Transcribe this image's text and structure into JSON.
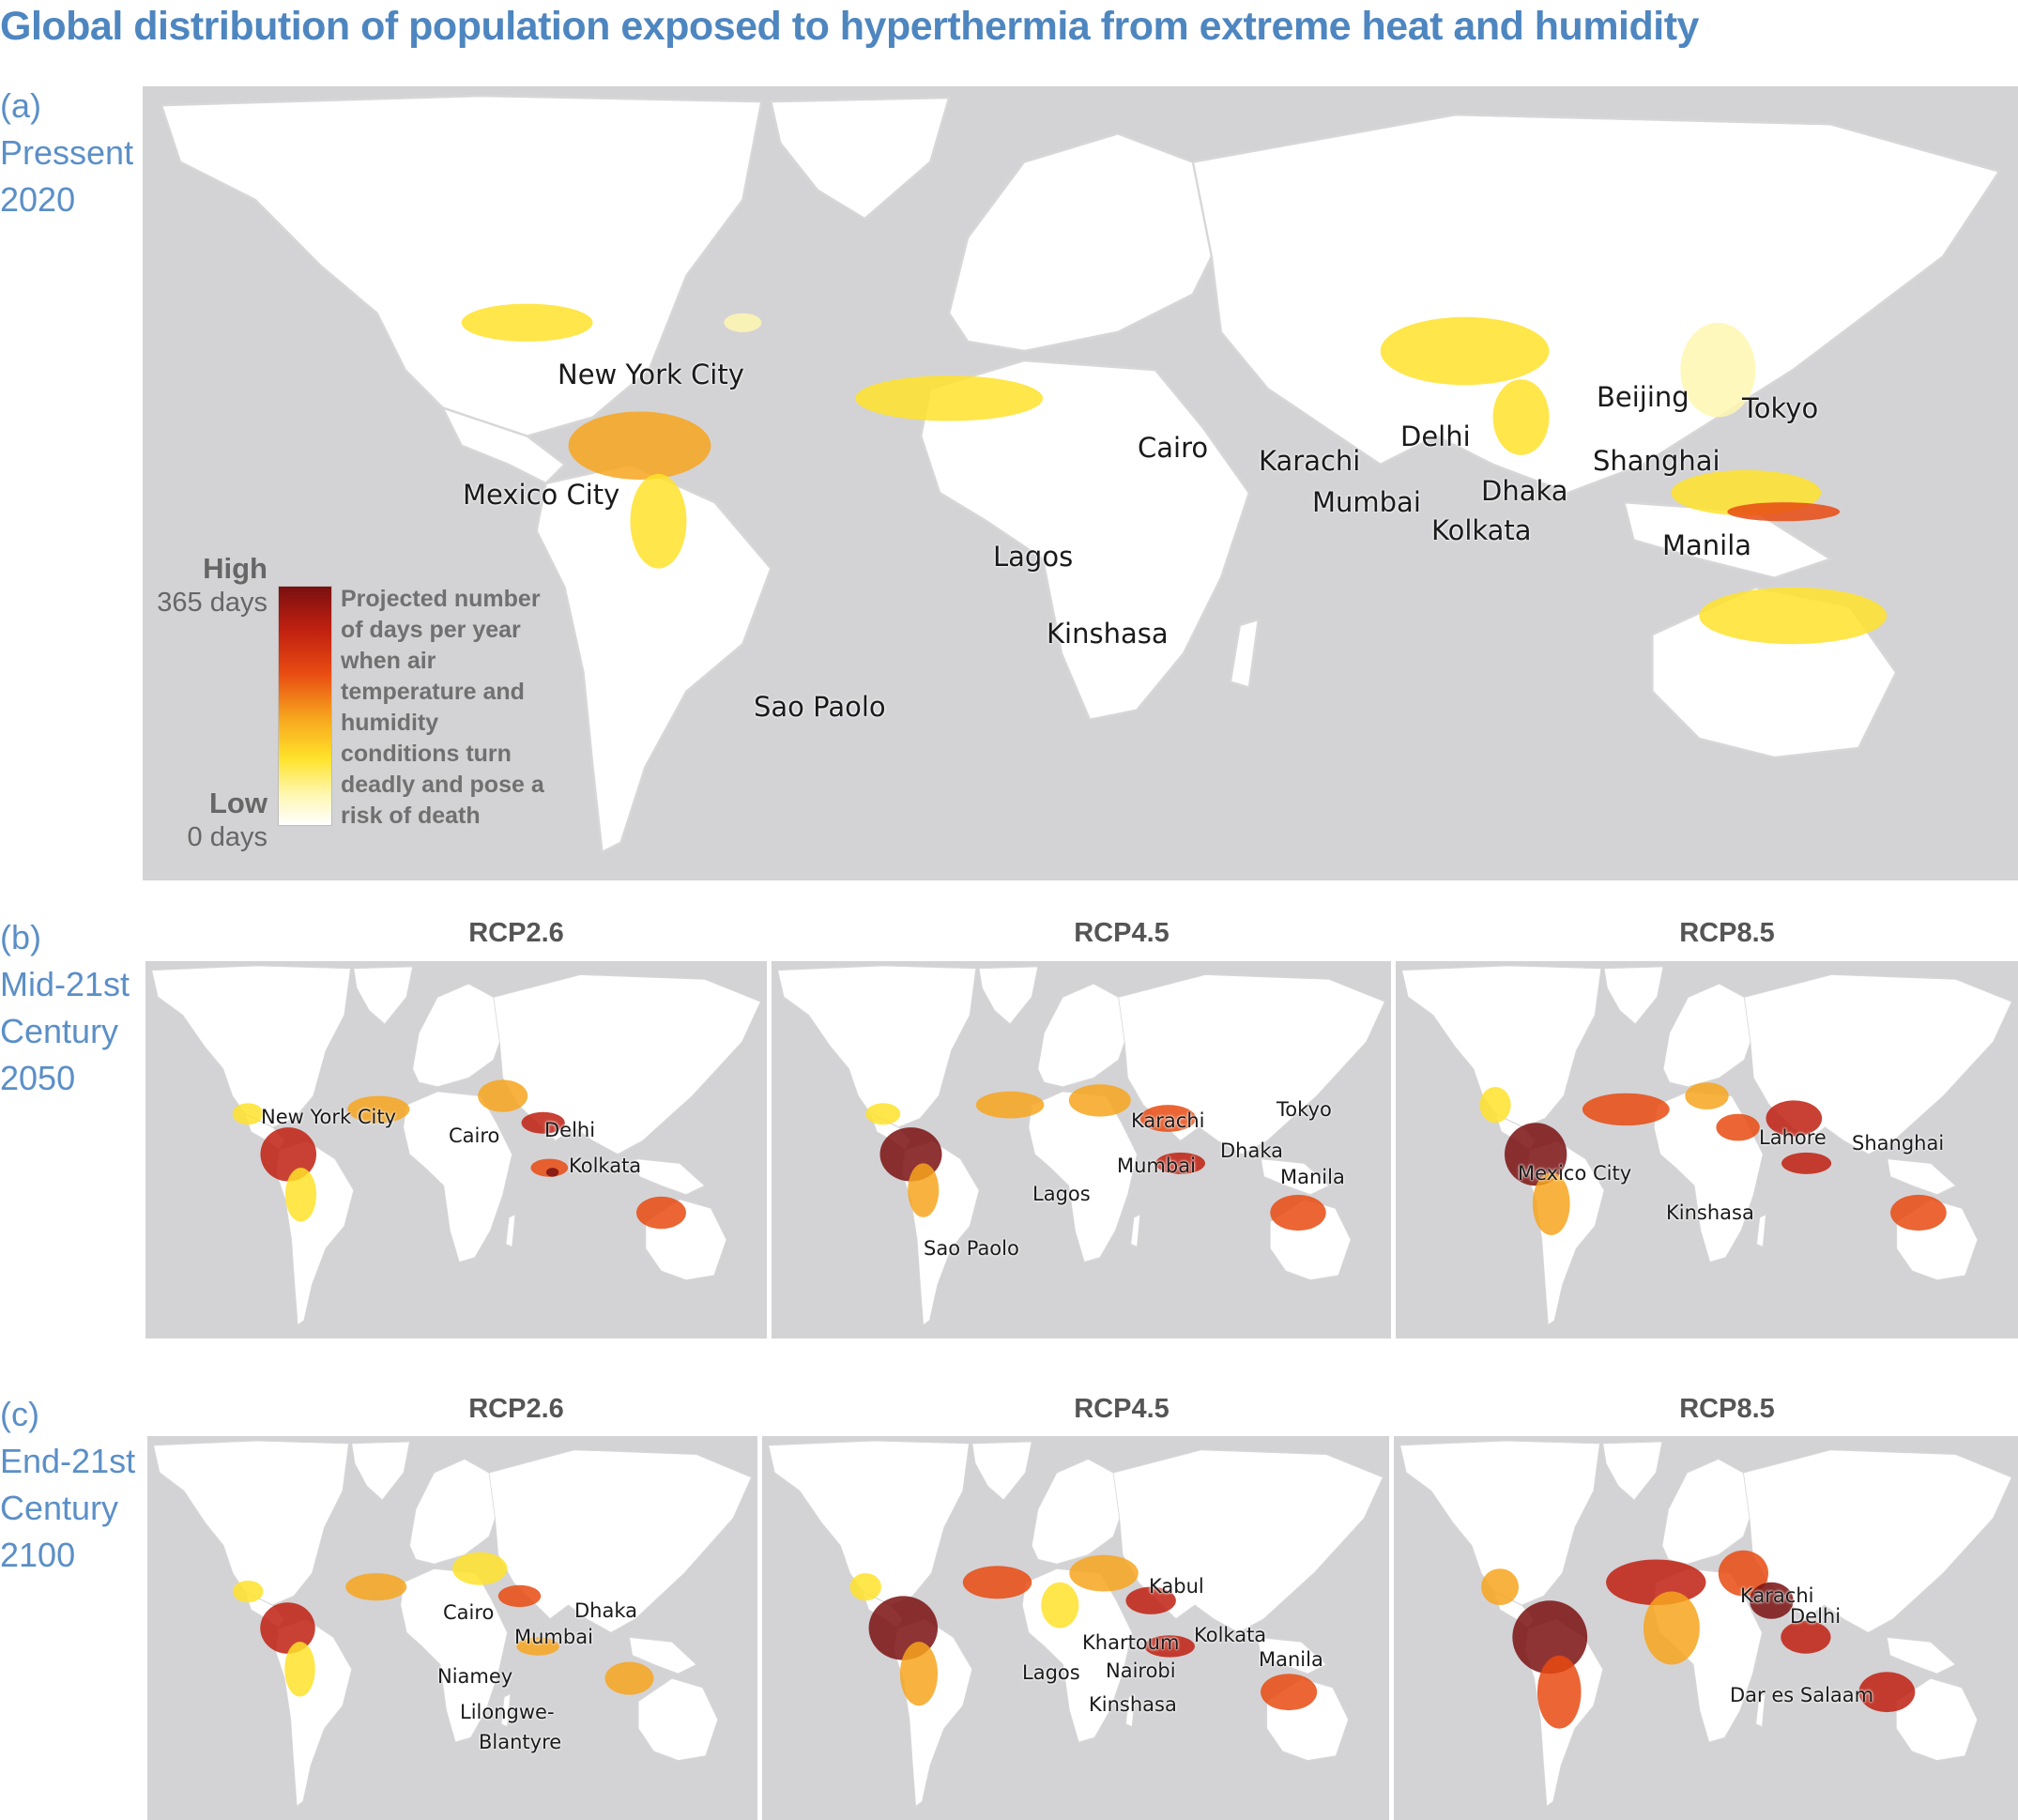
{
  "title": "Global distribution of population exposed to hyperthermia from extreme heat and humidity",
  "rows": {
    "a": {
      "letter": "(a)",
      "line1": "Pressent",
      "line2": "2020"
    },
    "b": {
      "letter": "(b)",
      "line1": "Mid-21st",
      "line2": "Century",
      "line3": "2050"
    },
    "c": {
      "letter": "(c)",
      "line1": "End-21st",
      "line2": "Century",
      "line3": "2100"
    }
  },
  "scenarios": [
    "RCP2.6",
    "RCP4.5",
    "RCP8.5"
  ],
  "legend": {
    "high": "High",
    "high_days": "365 days",
    "low": "Low",
    "low_days": "0 days",
    "description": "Projected number of days per year when air temperature and humidity conditions turn deadly and pose a risk of death",
    "colors": [
      "#ffffff",
      "#fff7b0",
      "#ffe22a",
      "#f7a51e",
      "#e84a12",
      "#c02010",
      "#7a1010"
    ]
  },
  "panel_a_cities": [
    "New York City",
    "Mexico City",
    "Cairo",
    "Karachi",
    "Delhi",
    "Mumbai",
    "Dhaka",
    "Kolkata",
    "Beijing",
    "Tokyo",
    "Shanghai",
    "Manila",
    "Lagos",
    "Kinshasa",
    "Sao Paolo"
  ],
  "panel_b1_cities": [
    "New York City",
    "Cairo",
    "Delhi",
    "Kolkata"
  ],
  "panel_b2_cities": [
    "Karachi",
    "Tokyo",
    "Dhaka",
    "Mumbai",
    "Manila",
    "Lagos",
    "Sao Paolo"
  ],
  "panel_b3_cities": [
    "Lahore",
    "Shanghai",
    "Mexico City",
    "Kinshasa"
  ],
  "panel_c1_cities": [
    "Cairo",
    "Dhaka",
    "Mumbai",
    "Niamey",
    "Lilongwe-",
    "Blantyre"
  ],
  "panel_c2_cities": [
    "Kabul",
    "Khartoum",
    "Kolkata",
    "Manila",
    "Lagos",
    "Nairobi",
    "Kinshasa"
  ],
  "panel_c3_cities": [
    "Karachi",
    "Delhi",
    "Dar es Salaam"
  ]
}
